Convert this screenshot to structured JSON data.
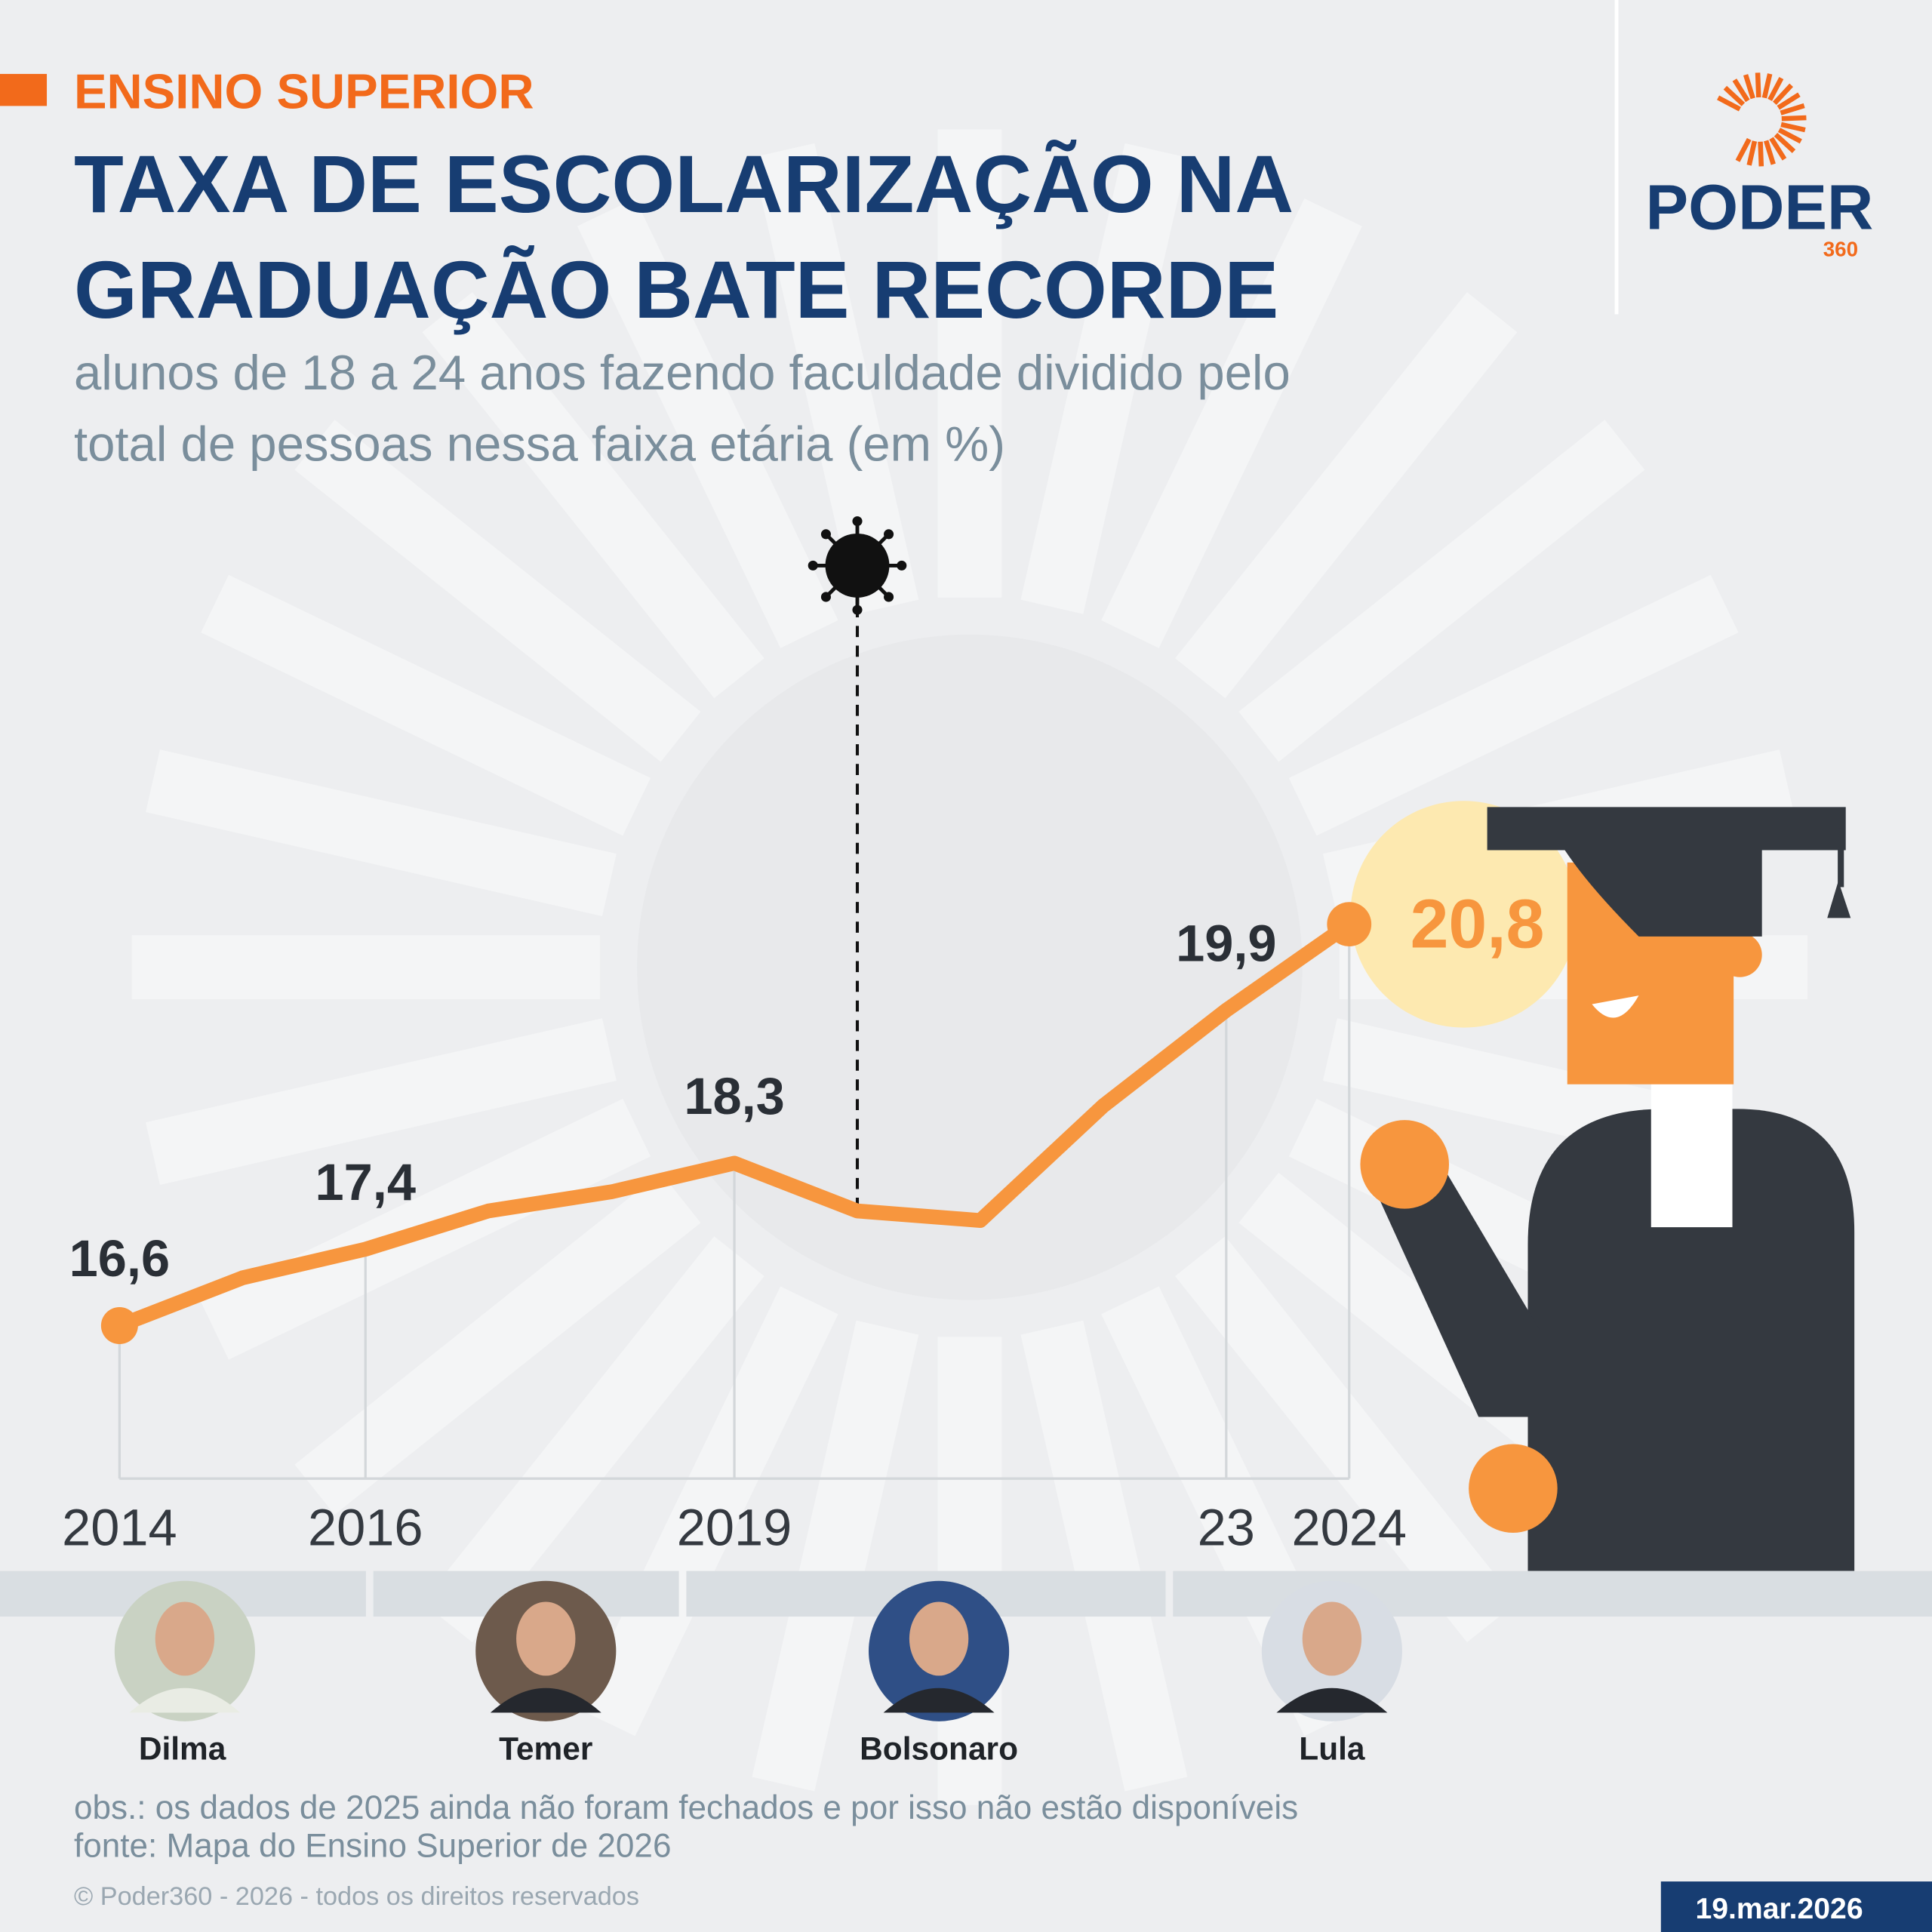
{
  "kicker": "ENSINO SUPERIOR",
  "logo": {
    "name": "PODER",
    "sub": "360"
  },
  "chart_data": {
    "type": "line",
    "title": [
      "TAXA DE ESCOLARIZAÇÃO NA",
      "GRADUAÇÃO BATE RECORDE"
    ],
    "subtitle": [
      "alunos de 18 a 24 anos fazendo faculdade dividido pelo",
      "total de pessoas nessa faixa etária (em %)"
    ],
    "x": [
      2014,
      2015,
      2016,
      2017,
      2018,
      2019,
      2020,
      2021,
      2022,
      2023,
      2024
    ],
    "values": [
      16.6,
      17.1,
      17.4,
      17.8,
      18.0,
      18.3,
      17.8,
      17.7,
      18.9,
      19.9,
      20.8
    ],
    "value_labels": [
      "16,6",
      null,
      "17,4",
      null,
      null,
      "18,3",
      null,
      null,
      null,
      "19,9",
      "20,8"
    ],
    "color": "#f7963e",
    "xlim": [
      2014,
      2024
    ],
    "xticks": [
      2014,
      2016,
      2019,
      {
        "value": 2023,
        "label": "23"
      },
      2024
    ],
    "ylim": [
      15,
      22
    ]
  },
  "presidents": [
    "Dilma",
    "Temer",
    "Bolsonaro",
    "Lula"
  ],
  "notes": [
    "obs.: os dados de 2025 ainda não foram fechados e por isso não estão disponíveis",
    "fonte: Mapa do Ensino Superior de 2026"
  ],
  "copyright": "© Poder360 - 2026 - todos os direitos reservados",
  "date": "19.mar.2026"
}
